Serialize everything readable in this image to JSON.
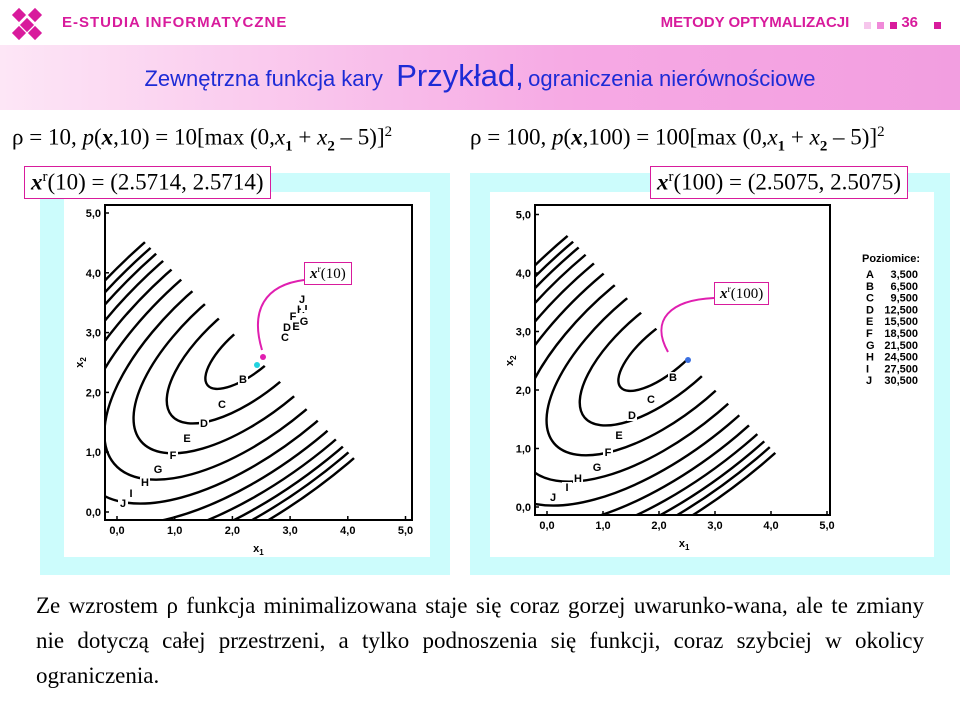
{
  "header": {
    "brand": "E-STUDIA INFORMATYCZNE",
    "course": "METODY OPTYMALIZACJI",
    "page": "36"
  },
  "title": {
    "lead": "Zewnętrzna funkcja kary",
    "main": "Przykład,",
    "tail": "ograniczenia nierównościowe"
  },
  "cases": [
    {
      "formula": [
        "ρ = 10,  ",
        "p",
        "(",
        "x",
        ",10) = 10[max (0,",
        "x",
        "1",
        " + ",
        "x",
        "2",
        " – 5)]",
        "2"
      ],
      "result": [
        "x",
        "r",
        "(10) = (2.5714, 2.5714)"
      ],
      "pointer": [
        "x",
        "r",
        "(10)"
      ]
    },
    {
      "formula": [
        "ρ = 100, ",
        "p",
        "(",
        "x",
        ",100) = 100[max (0,",
        "x",
        "1",
        " + ",
        "x",
        "2",
        " – 5)]",
        "2"
      ],
      "result": [
        "x",
        "r",
        "(100) = (2.5075, 2.5075)"
      ],
      "pointer": [
        "x",
        "r",
        "(100)"
      ]
    }
  ],
  "plots": [
    {
      "xticks": [
        "0,0",
        "1,0",
        "2,0",
        "3,0",
        "4,0",
        "5,0"
      ],
      "yticks": [
        "0,0",
        "1,0",
        "2,0",
        "3,0",
        "4,0",
        "5,0"
      ],
      "x_label": [
        "x",
        "1"
      ],
      "y_label": [
        "x",
        "2"
      ],
      "contour_labels": [
        "B",
        "C",
        "D",
        "E",
        "F",
        "G",
        "H",
        "I",
        "J",
        "C",
        "D",
        "E",
        "F",
        "G",
        "H",
        "I",
        "J"
      ]
    },
    {
      "xticks": [
        "0,0",
        "1,0",
        "2,0",
        "3,0",
        "4,0",
        "5,0"
      ],
      "yticks": [
        "0,0",
        "1,0",
        "2,0",
        "3,0",
        "4,0",
        "5,0"
      ],
      "x_label": [
        "x",
        "1"
      ],
      "y_label": [
        "x",
        "2"
      ],
      "contour_labels": [
        "B",
        "C",
        "D",
        "E",
        "F",
        "G",
        "H",
        "I",
        "J"
      ]
    }
  ],
  "legend": {
    "title": "Poziomice:",
    "entries": [
      {
        "level": "A",
        "value": "3,500"
      },
      {
        "level": "B",
        "value": "6,500"
      },
      {
        "level": "C",
        "value": "9,500"
      },
      {
        "level": "D",
        "value": "12,500"
      },
      {
        "level": "E",
        "value": "15,500"
      },
      {
        "level": "F",
        "value": "18,500"
      },
      {
        "level": "G",
        "value": "21,500"
      },
      {
        "level": "H",
        "value": "24,500"
      },
      {
        "level": "I",
        "value": "27,500"
      },
      {
        "level": "J",
        "value": "30,500"
      }
    ]
  },
  "body": "Ze wzrostem ρ funkcja minimalizowana staje się coraz gorzej uwarunko-wana, ale te zmiany nie dotyczą całej przestrzeni, a tylko podnoszenia się funkcji, coraz szybciej w okolicy ograniczenia."
}
